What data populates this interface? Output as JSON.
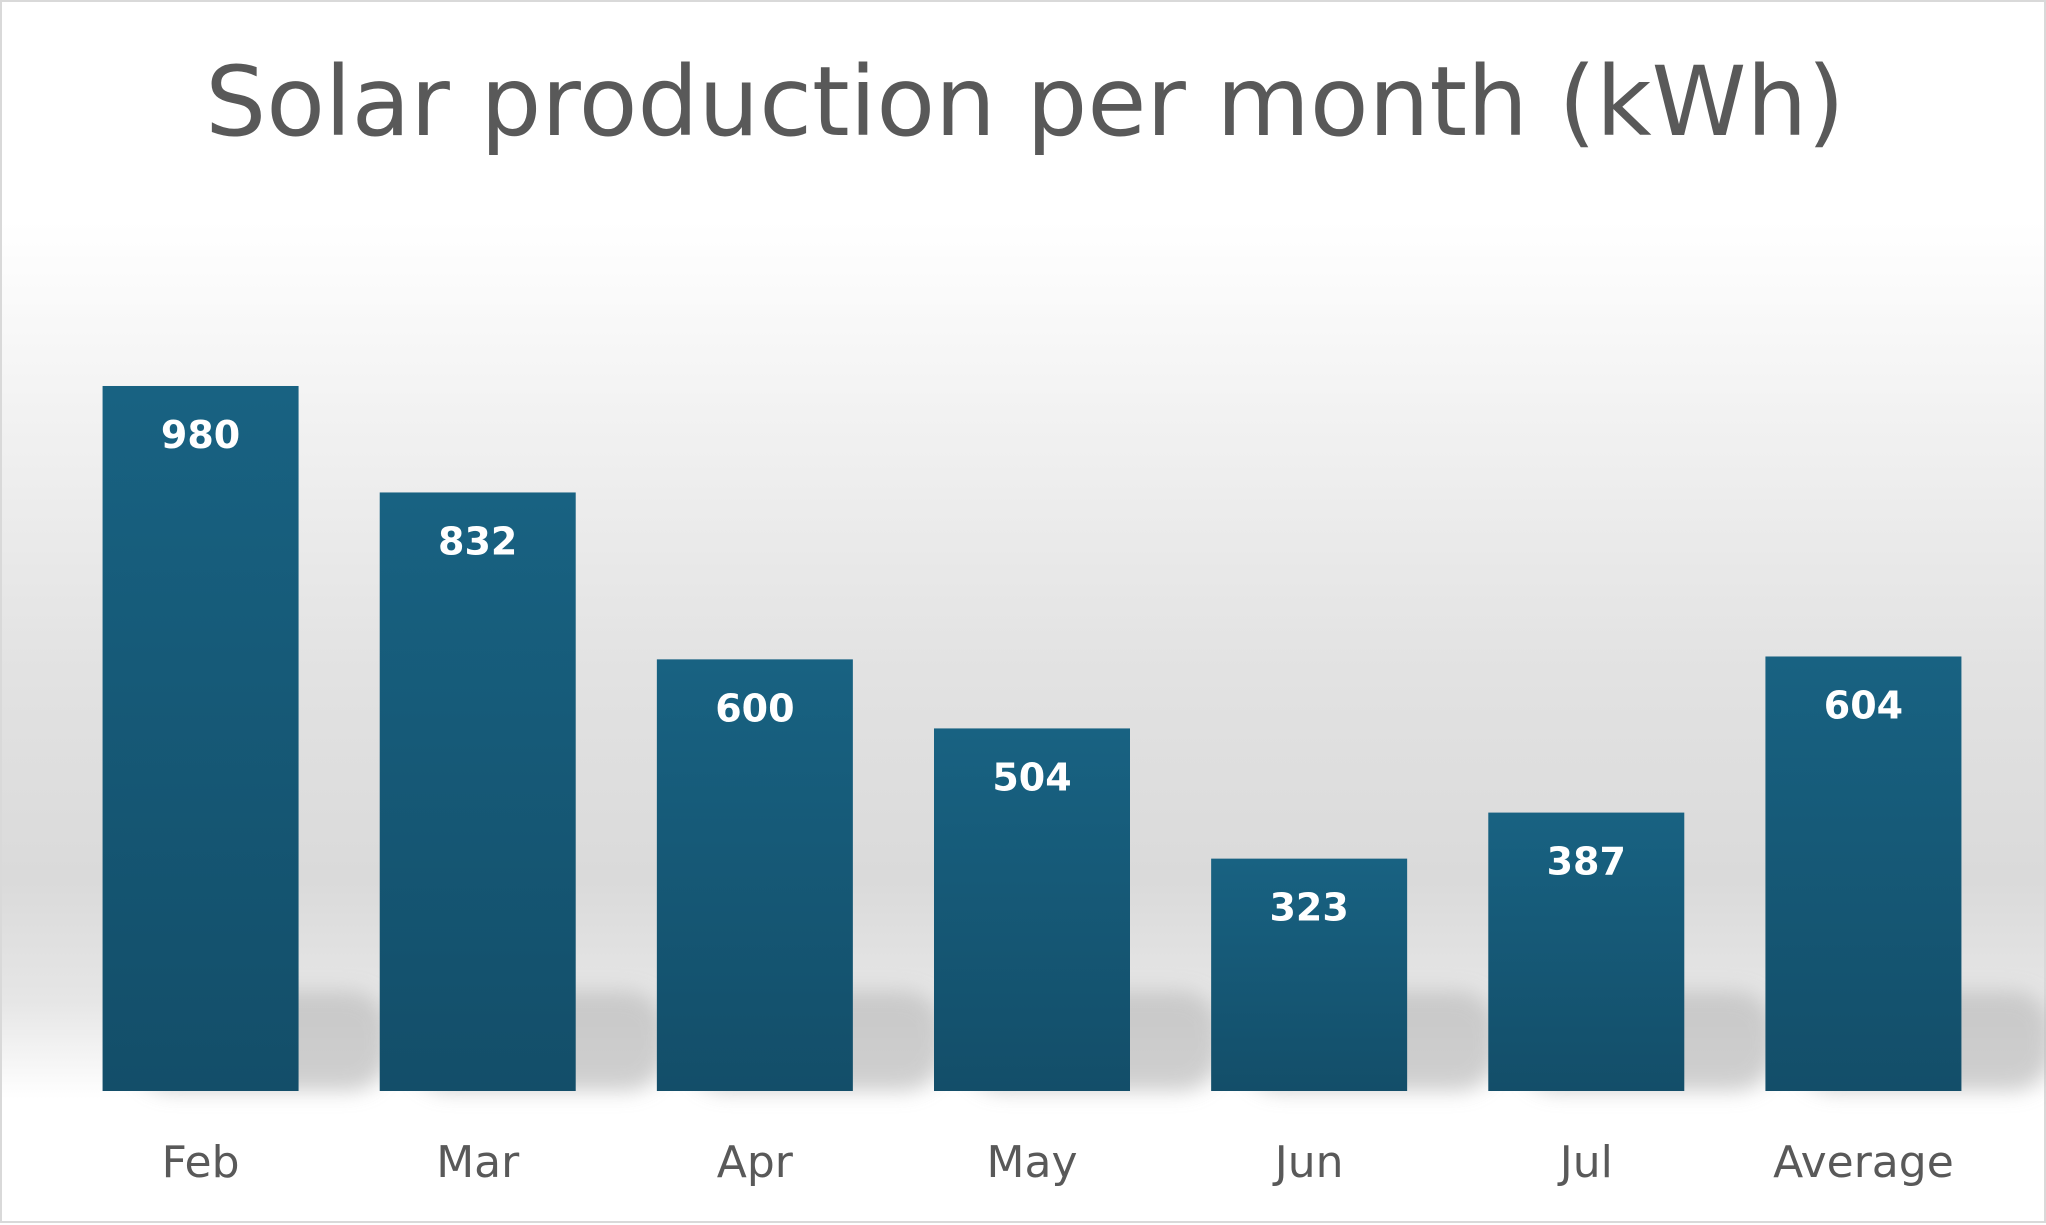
{
  "chart_data": {
    "type": "bar",
    "title": "Solar production per month (kWh)",
    "xlabel": "",
    "ylabel": "",
    "categories": [
      "Feb",
      "Mar",
      "Apr",
      "May",
      "Jun",
      "Jul",
      "Average"
    ],
    "values": [
      980,
      832,
      600,
      504,
      323,
      387,
      604
    ],
    "ylim": [
      0,
      1000
    ],
    "grid": false,
    "legend": "none",
    "data_labels": [
      "980",
      "832",
      "600",
      "504",
      "323",
      "387",
      "604"
    ],
    "colors": {
      "bar_top": "#186282",
      "bar_bottom": "#134e69",
      "data_label": "#ffffff",
      "axis_text": "#595959"
    }
  }
}
